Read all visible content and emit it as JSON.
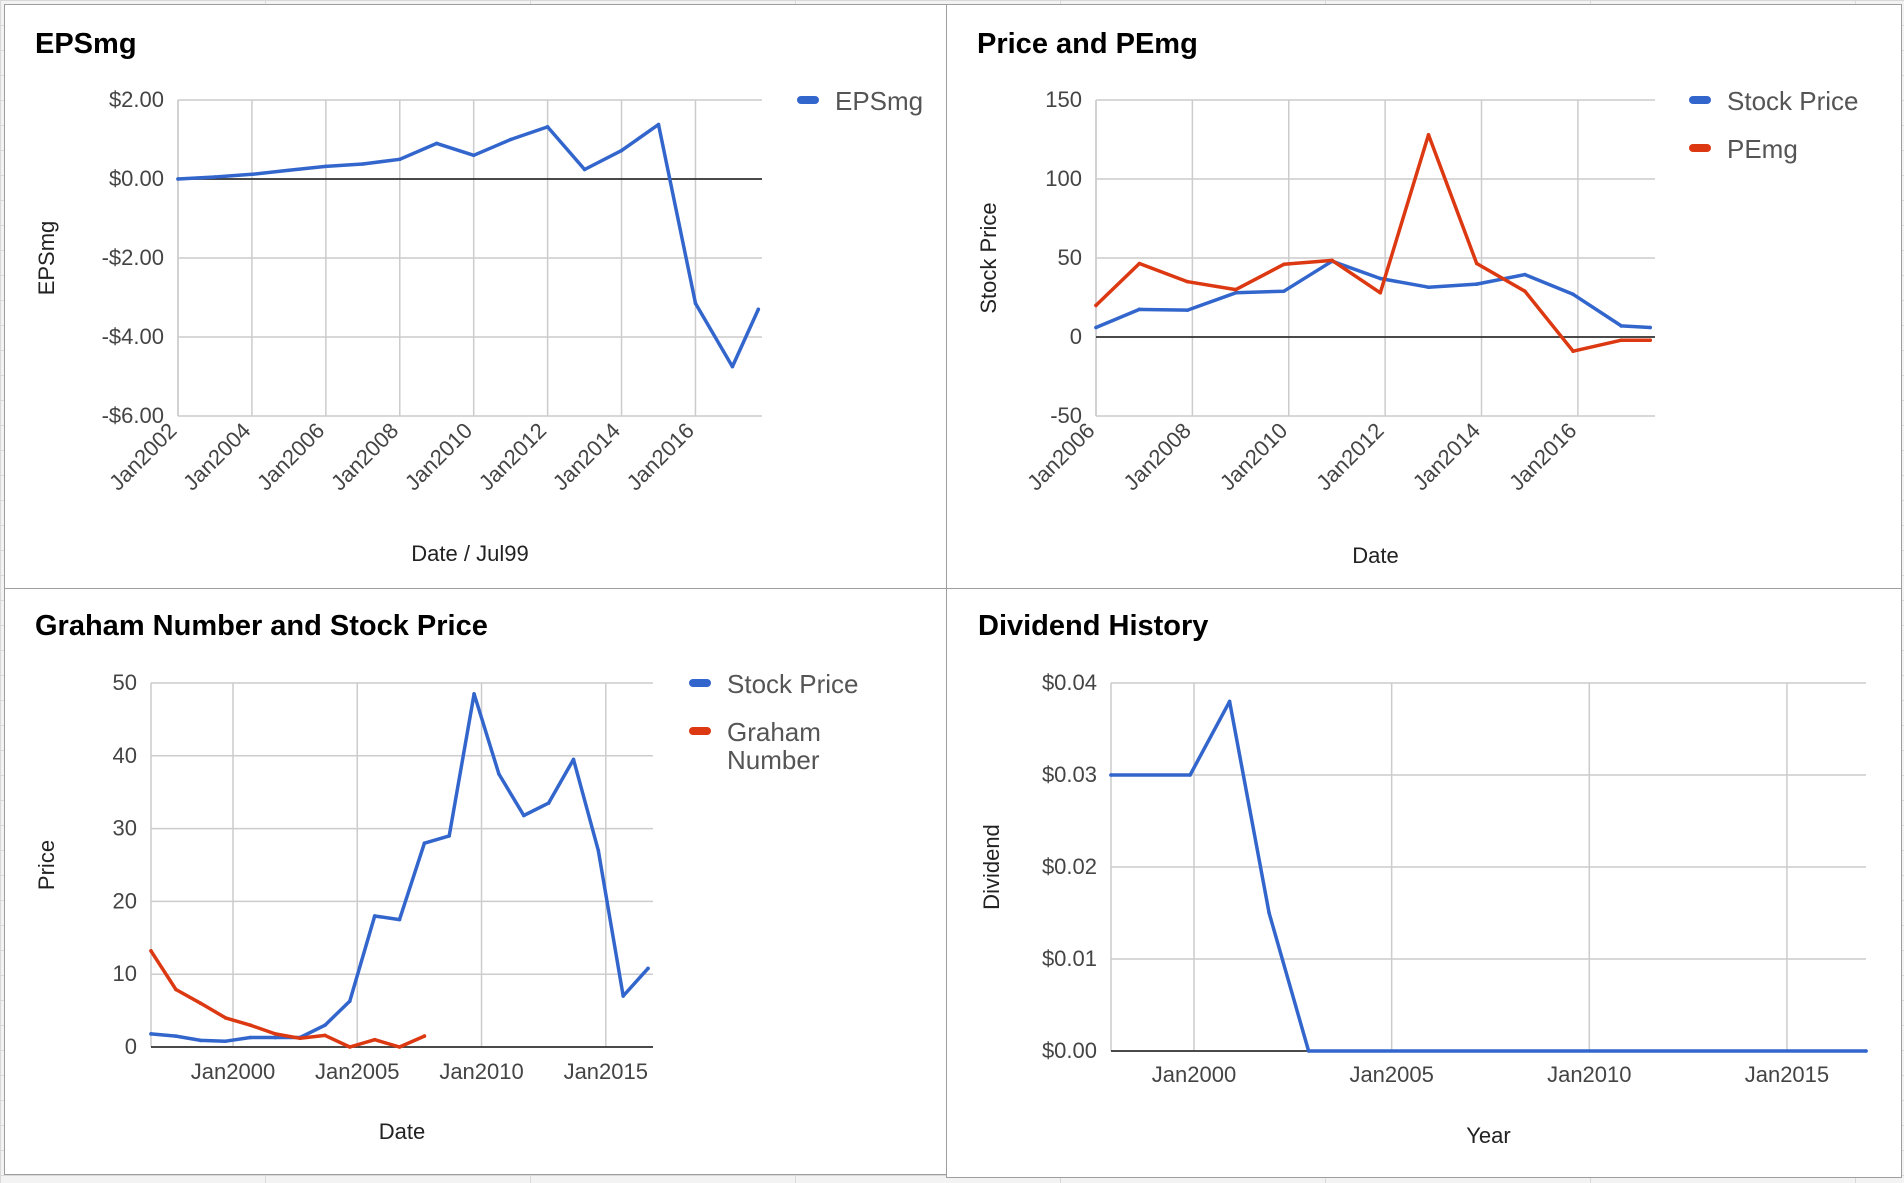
{
  "colors": {
    "blue": "#3366cc",
    "red": "#dc3912"
  },
  "chart_data": [
    {
      "id": "eps",
      "type": "line",
      "title": "EPSmg",
      "xlabel": "Date / Jul99",
      "ylabel": "EPSmg",
      "ylim": [
        -6,
        2
      ],
      "xlim": [
        2002,
        2017.8
      ],
      "yticks": [
        2,
        0,
        -2,
        -4,
        -6
      ],
      "ytick_labels": [
        "$2.00",
        "$0.00",
        "-$2.00",
        "-$4.00",
        "-$6.00"
      ],
      "xticks": [
        2002,
        2004,
        2006,
        2008,
        2010,
        2012,
        2014,
        2016
      ],
      "xtick_labels": [
        "Jan2002",
        "Jan2004",
        "Jan2006",
        "Jan2008",
        "Jan2010",
        "Jan2012",
        "Jan2014",
        "Jan2016"
      ],
      "zero_line": true,
      "grid": true,
      "legend_position": "right",
      "series": [
        {
          "name": "EPSmg",
          "color": "#3366cc",
          "x": [
            2002,
            2003,
            2004,
            2005,
            2006,
            2007,
            2008,
            2009,
            2010,
            2011,
            2012,
            2013,
            2014,
            2015,
            2016,
            2017,
            2017.7
          ],
          "y": [
            0,
            0.05,
            0.12,
            0.22,
            0.32,
            0.38,
            0.5,
            0.9,
            0.6,
            1.0,
            1.32,
            0.24,
            0.72,
            1.38,
            -3.15,
            -4.75,
            -3.3
          ]
        }
      ]
    },
    {
      "id": "price-pe",
      "type": "line",
      "title": "Price and PEmg",
      "xlabel": "Date",
      "ylabel": "Stock Price",
      "ylim": [
        -50,
        150
      ],
      "xlim": [
        2006,
        2017.6
      ],
      "yticks": [
        150,
        100,
        50,
        0,
        -50
      ],
      "ytick_labels": [
        "150",
        "100",
        "50",
        "0",
        "-50"
      ],
      "xticks": [
        2006,
        2008,
        2010,
        2012,
        2014,
        2016
      ],
      "xtick_labels": [
        "Jan2006",
        "Jan2008",
        "Jan2010",
        "Jan2012",
        "Jan2014",
        "Jan2016"
      ],
      "zero_line": true,
      "grid": true,
      "legend_position": "right",
      "series": [
        {
          "name": "Stock Price",
          "color": "#3366cc",
          "x": [
            2006,
            2006.9,
            2007.9,
            2008.9,
            2009.9,
            2010.9,
            2011.9,
            2012.9,
            2013.9,
            2014.9,
            2015.9,
            2016.9,
            2017.5
          ],
          "y": [
            6,
            17.5,
            17,
            28,
            29,
            48,
            37,
            31.5,
            33.5,
            39.5,
            27,
            7,
            6
          ]
        },
        {
          "name": "PEmg",
          "color": "#dc3912",
          "x": [
            2006,
            2006.9,
            2007.9,
            2008.9,
            2009.9,
            2010.9,
            2011.9,
            2012.9,
            2013.9,
            2014.9,
            2015.9,
            2016.9,
            2017.5
          ],
          "y": [
            20,
            46.5,
            35,
            30,
            46,
            48.5,
            28,
            128,
            46.5,
            29,
            -9,
            -2,
            -2
          ]
        }
      ]
    },
    {
      "id": "graham",
      "type": "line",
      "title": "Graham Number and Stock Price",
      "xlabel": "Date",
      "ylabel": "Price",
      "ylim": [
        0,
        50
      ],
      "xlim": [
        1996.7,
        2016.9
      ],
      "yticks": [
        50,
        40,
        30,
        20,
        10,
        0
      ],
      "ytick_labels": [
        "50",
        "40",
        "30",
        "20",
        "10",
        "0"
      ],
      "xticks": [
        2000,
        2005,
        2010,
        2015
      ],
      "xtick_labels": [
        "Jan2000",
        "Jan2005",
        "Jan2010",
        "Jan2015"
      ],
      "zero_line": true,
      "grid": true,
      "legend_position": "right",
      "series": [
        {
          "name": "Stock Price",
          "color": "#3366cc",
          "x": [
            1996.7,
            1997.7,
            1998.7,
            1999.7,
            2000.7,
            2001.7,
            2002.7,
            2003.7,
            2004.7,
            2005.7,
            2006.7,
            2007.7,
            2008.7,
            2009.7,
            2010.7,
            2011.7,
            2012.7,
            2013.7,
            2014.7,
            2015.7,
            2016.7
          ],
          "y": [
            1.8,
            1.5,
            0.9,
            0.8,
            1.3,
            1.3,
            1.3,
            3,
            6.3,
            18,
            17.5,
            28,
            29,
            48.5,
            37.5,
            31.8,
            33.5,
            39.5,
            27,
            7,
            10.8
          ]
        },
        {
          "name": "Graham Number",
          "color": "#dc3912",
          "x": [
            1996.7,
            1997.7,
            1998.7,
            1999.7,
            2000.7,
            2001.7,
            2002.7,
            2003.7,
            2004.7,
            2005.7,
            2006.7,
            2007.7
          ],
          "y": [
            13.2,
            7.9,
            6,
            4,
            3,
            1.8,
            1.2,
            1.6,
            0,
            1,
            0,
            1.5
          ]
        }
      ]
    },
    {
      "id": "dividend",
      "type": "line",
      "title": "Dividend History",
      "xlabel": "Year",
      "ylabel": "Dividend",
      "ylim": [
        0,
        0.04
      ],
      "xlim": [
        1997.9,
        2017
      ],
      "yticks": [
        0.04,
        0.03,
        0.02,
        0.01,
        0
      ],
      "ytick_labels": [
        "$0.04",
        "$0.03",
        "$0.02",
        "$0.01",
        "$0.00"
      ],
      "xticks": [
        2000,
        2005,
        2010,
        2015
      ],
      "xtick_labels": [
        "Jan2000",
        "Jan2005",
        "Jan2010",
        "Jan2015"
      ],
      "zero_line": true,
      "grid": true,
      "legend_position": "none",
      "series": [
        {
          "name": "",
          "color": "#3366cc",
          "x": [
            1997.9,
            1999.9,
            2000.9,
            2001.9,
            2002.9,
            2017
          ],
          "y": [
            0.03,
            0.03,
            0.038,
            0.015,
            0,
            0
          ]
        }
      ]
    }
  ]
}
